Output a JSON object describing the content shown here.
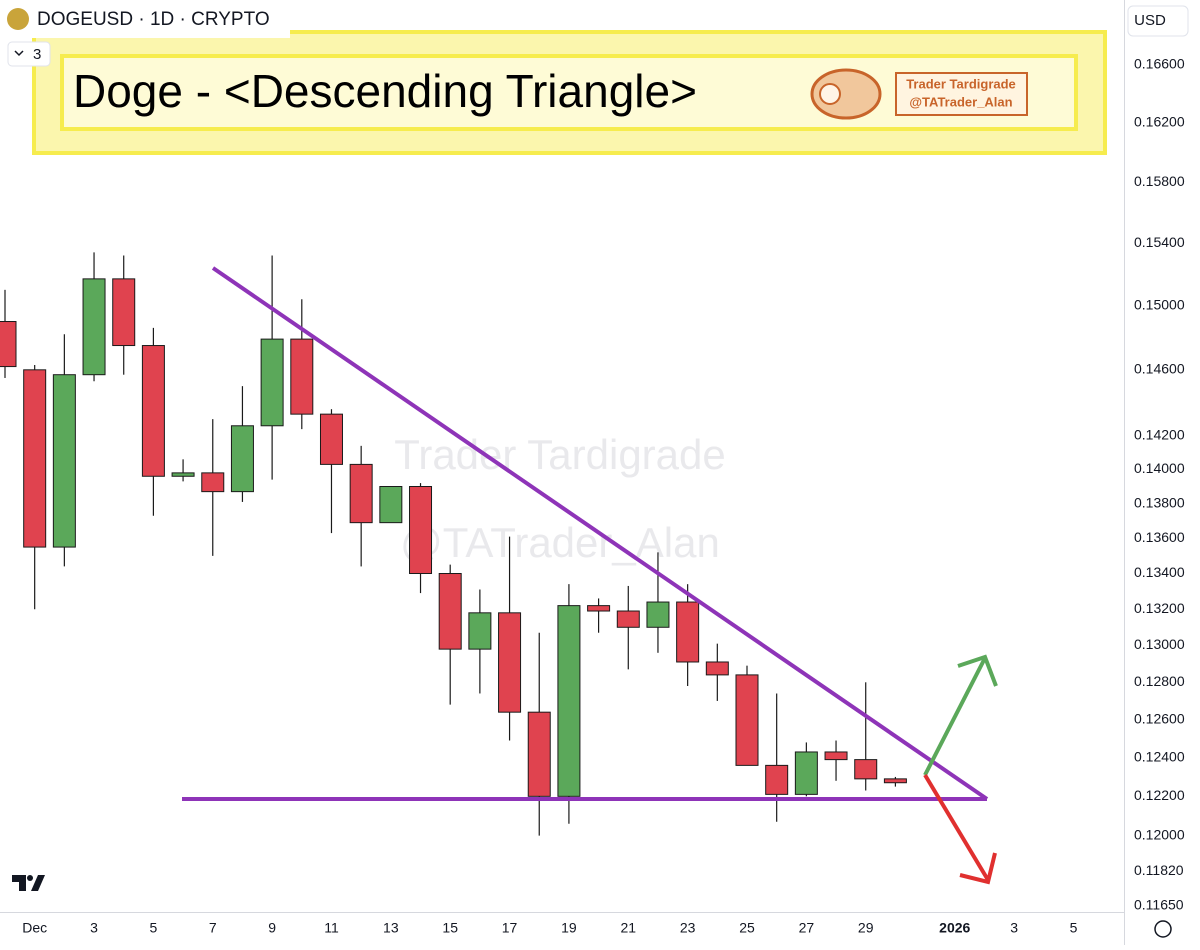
{
  "header": {
    "symbol": "DOGEUSD · 1D · CRYPTO",
    "indicator_count": 3,
    "currency": "USD"
  },
  "chart_data": {
    "type": "candlestick",
    "title": "Doge - <Descending Triangle>",
    "author": "Trader Tardigrade",
    "handle": "@TATrader_Alan",
    "up_color": "#5ba85a",
    "down_color": "#e0434f",
    "log_scale": true,
    "categories": [
      null,
      "Dec",
      null,
      "3",
      null,
      "5",
      null,
      "7",
      null,
      "9",
      null,
      "11",
      null,
      "13",
      null,
      "15",
      null,
      "17",
      null,
      "19",
      null,
      "21",
      null,
      "23",
      null,
      "25",
      null,
      "27",
      null,
      "29",
      null,
      null,
      "2026",
      null,
      "3",
      null,
      "5"
    ],
    "open": [
      0.149,
      0.146,
      0.1355,
      0.1457,
      0.1517,
      0.1475,
      0.1396,
      0.1398,
      0.1387,
      0.1426,
      0.1479,
      0.1433,
      0.1403,
      0.1369,
      0.139,
      0.134,
      0.1298,
      0.1318,
      0.1264,
      0.122,
      0.1322,
      0.1319,
      0.131,
      0.1324,
      0.1291,
      0.1284,
      0.1236,
      0.1221,
      0.1243,
      0.1239,
      0.1229,
      null,
      null,
      null,
      null,
      null,
      null
    ],
    "high": [
      0.151,
      0.1463,
      0.1482,
      0.1534,
      0.1532,
      0.1486,
      0.1406,
      0.143,
      0.145,
      0.1532,
      0.1504,
      0.1436,
      0.1414,
      0.139,
      0.1392,
      0.1345,
      0.1331,
      0.1361,
      0.1307,
      0.1334,
      0.1326,
      0.1333,
      0.1352,
      0.1334,
      0.1301,
      0.1289,
      0.1274,
      0.1248,
      0.1249,
      0.128,
      0.123,
      null,
      null,
      null,
      null,
      null,
      null
    ],
    "low": [
      0.1455,
      0.132,
      0.1344,
      0.1453,
      0.1457,
      0.1373,
      0.1393,
      0.135,
      0.1381,
      0.1394,
      0.1424,
      0.1363,
      0.1344,
      0.1369,
      0.1329,
      0.1268,
      0.1274,
      0.1249,
      0.12,
      0.1206,
      0.1307,
      0.1287,
      0.1296,
      0.1278,
      0.127,
      0.1236,
      0.1207,
      0.122,
      0.1228,
      0.1223,
      0.1225,
      null,
      null,
      null,
      null,
      null,
      null
    ],
    "close": [
      0.1462,
      0.1355,
      0.1457,
      0.1517,
      0.1475,
      0.1396,
      0.1398,
      0.1387,
      0.1426,
      0.1479,
      0.1433,
      0.1403,
      0.1369,
      0.139,
      0.134,
      0.1298,
      0.1318,
      0.1264,
      0.122,
      0.1322,
      0.1319,
      0.131,
      0.1324,
      0.1291,
      0.1284,
      0.1236,
      0.1221,
      0.1243,
      0.1239,
      0.1229,
      0.1227,
      null,
      null,
      null,
      null,
      null,
      null
    ],
    "ylim": [
      0.1162,
      0.1706
    ],
    "yticks": [
      {
        "value": 0.166,
        "label": "0.16600"
      },
      {
        "value": 0.162,
        "label": "0.16200"
      },
      {
        "value": 0.158,
        "label": "0.15800"
      },
      {
        "value": 0.154,
        "label": "0.15400"
      },
      {
        "value": 0.15,
        "label": "0.15000"
      },
      {
        "value": 0.146,
        "label": "0.14600"
      },
      {
        "value": 0.142,
        "label": "0.14200"
      },
      {
        "value": 0.14,
        "label": "0.14000"
      },
      {
        "value": 0.138,
        "label": "0.13800"
      },
      {
        "value": 0.136,
        "label": "0.13600"
      },
      {
        "value": 0.134,
        "label": "0.13400"
      },
      {
        "value": 0.132,
        "label": "0.13200"
      },
      {
        "value": 0.13,
        "label": "0.13000"
      },
      {
        "value": 0.128,
        "label": "0.12800"
      },
      {
        "value": 0.126,
        "label": "0.12600"
      },
      {
        "value": 0.124,
        "label": "0.12400"
      },
      {
        "value": 0.122,
        "label": "0.12200"
      },
      {
        "value": 0.12,
        "label": "0.12000"
      },
      {
        "value": 0.1182,
        "label": "0.11820"
      },
      {
        "value": 0.1165,
        "label": "0.11650"
      }
    ]
  }
}
